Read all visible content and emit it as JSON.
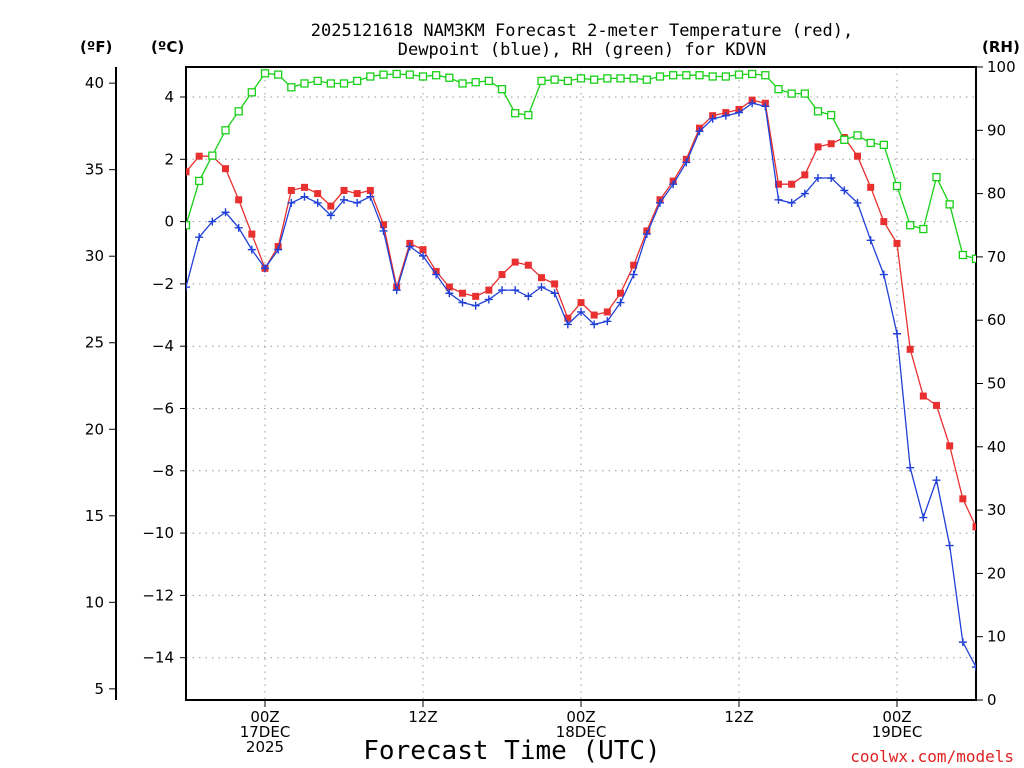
{
  "chart_data": {
    "type": "line",
    "title_line1": "2025121618 NAM3KM Forecast 2-meter Temperature (red),",
    "title_line2": "Dewpoint (blue), RH (green) for KDVN",
    "xlabel": "Forecast Time (UTC)",
    "credit": "coolwx.com/models",
    "units": {
      "fahrenheit": "(ºF)",
      "celsius": "(ºC)",
      "rh": "(RH)"
    },
    "y_celsius": {
      "range": [
        -15.5,
        5
      ],
      "ticks": [
        4,
        2,
        0,
        -2,
        -4,
        -6,
        -8,
        -10,
        -12,
        -14
      ],
      "tick_labels": [
        "4",
        "2",
        "0",
        "−2",
        "−4",
        "−6",
        "−8",
        "−10",
        "−12",
        "−14"
      ]
    },
    "y_fahrenheit": {
      "ticks": [
        40,
        35,
        30,
        25,
        20,
        15,
        10,
        5
      ],
      "tick_labels": [
        "40",
        "35",
        "30",
        "25",
        "20",
        "15",
        "10",
        "5"
      ]
    },
    "y_rh": {
      "range": [
        0,
        100
      ],
      "ticks": [
        100,
        90,
        80,
        70,
        60,
        50,
        40,
        30,
        20,
        10,
        0
      ],
      "tick_labels": [
        "100",
        "90",
        "80",
        "70",
        "60",
        "50",
        "40",
        "30",
        "20",
        "10",
        "0"
      ]
    },
    "x_hours": {
      "range": [
        0,
        60
      ],
      "comment_hours_from": "2025121618",
      "ticks": [
        {
          "hour": 6,
          "lines": [
            "00Z",
            "17DEC",
            "2025"
          ]
        },
        {
          "hour": 18,
          "lines": [
            "12Z"
          ]
        },
        {
          "hour": 30,
          "lines": [
            "00Z",
            "18DEC"
          ]
        },
        {
          "hour": 42,
          "lines": [
            "12Z"
          ]
        },
        {
          "hour": 54,
          "lines": [
            "00Z",
            "19DEC"
          ]
        }
      ]
    },
    "series": [
      {
        "name": "2-meter Temperature",
        "unit": "C",
        "color": "#e83030",
        "marker": "square-filled",
        "values": [
          1.6,
          2.1,
          2.1,
          1.7,
          0.7,
          -0.4,
          -1.5,
          -0.8,
          1.0,
          1.1,
          0.9,
          0.5,
          1.0,
          0.9,
          1.0,
          -0.1,
          -2.1,
          -0.7,
          -0.9,
          -1.6,
          -2.1,
          -2.3,
          -2.4,
          -2.2,
          -1.7,
          -1.3,
          -1.4,
          -1.8,
          -2.0,
          -3.1,
          -2.6,
          -3.0,
          -2.9,
          -2.3,
          -1.4,
          -0.3,
          0.7,
          1.3,
          2.0,
          3.0,
          3.4,
          3.5,
          3.6,
          3.9,
          3.8,
          1.2,
          1.2,
          1.5,
          2.4,
          2.5,
          2.7,
          2.1,
          1.1,
          0.0,
          -0.7,
          -4.1,
          -5.6,
          -5.9,
          -7.2,
          -8.9,
          -9.8
        ]
      },
      {
        "name": "Dewpoint",
        "unit": "C",
        "color": "#2040d8",
        "marker": "plus",
        "values": [
          -2.1,
          -0.5,
          0.0,
          0.3,
          -0.2,
          -0.9,
          -1.5,
          -0.9,
          0.6,
          0.8,
          0.6,
          0.2,
          0.7,
          0.6,
          0.8,
          -0.3,
          -2.2,
          -0.8,
          -1.1,
          -1.7,
          -2.3,
          -2.6,
          -2.7,
          -2.5,
          -2.2,
          -2.2,
          -2.4,
          -2.1,
          -2.3,
          -3.3,
          -2.9,
          -3.3,
          -3.2,
          -2.6,
          -1.7,
          -0.4,
          0.6,
          1.2,
          1.9,
          2.9,
          3.3,
          3.4,
          3.5,
          3.8,
          3.7,
          0.7,
          0.6,
          0.9,
          1.4,
          1.4,
          1.0,
          0.6,
          -0.6,
          -1.7,
          -3.6,
          -7.9,
          -9.5,
          -8.3,
          -10.4,
          -13.5,
          -14.3
        ]
      },
      {
        "name": "RH",
        "unit": "%",
        "color": "#18d018",
        "marker": "square-open",
        "values": [
          75,
          82,
          86,
          90,
          93,
          96,
          99,
          98.8,
          96.8,
          97.4,
          97.8,
          97.4,
          97.4,
          97.8,
          98.5,
          98.8,
          98.9,
          98.8,
          98.5,
          98.7,
          98.3,
          97.4,
          97.6,
          97.8,
          96.5,
          92.7,
          92.4,
          97.8,
          98.0,
          97.8,
          98.2,
          98.0,
          98.2,
          98.2,
          98.2,
          98.0,
          98.5,
          98.7,
          98.7,
          98.7,
          98.5,
          98.5,
          98.8,
          98.9,
          98.7,
          96.5,
          95.8,
          95.8,
          93.0,
          92.4,
          88.5,
          89.2,
          88.0,
          87.7,
          81.2,
          75.0,
          74.4,
          82.6,
          78.3,
          70.3,
          69.7
        ]
      }
    ]
  }
}
